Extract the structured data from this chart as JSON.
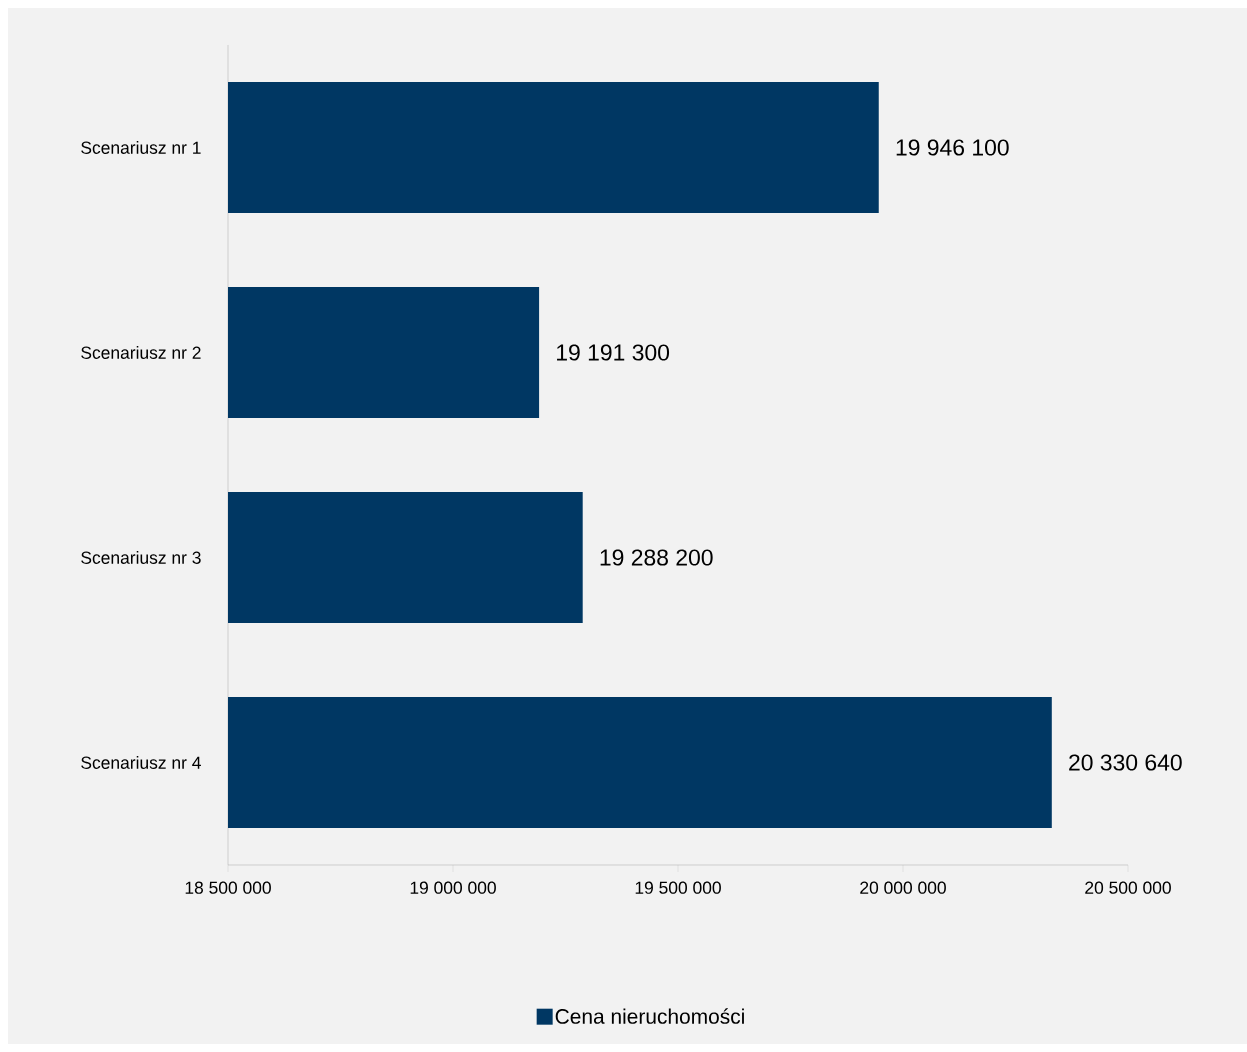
{
  "chart_data": {
    "type": "bar",
    "orientation": "horizontal",
    "categories": [
      "Scenariusz nr 1",
      "Scenariusz nr 2",
      "Scenariusz nr 3",
      "Scenariusz nr 4"
    ],
    "series": [
      {
        "name": "Cena nieruchomości",
        "color": "#003763",
        "values": [
          19946100,
          19191300,
          19288200,
          20330640
        ],
        "value_labels": [
          "19 946 100",
          "19 191 300",
          "19 288 200",
          "20 330 640"
        ]
      }
    ],
    "xlim": [
      18500000,
      20500000
    ],
    "xticks": [
      {
        "value": 18500000,
        "label": "18 500 000"
      },
      {
        "value": 19000000,
        "label": "19 000 000"
      },
      {
        "value": 19500000,
        "label": "19 500 000"
      },
      {
        "value": 20000000,
        "label": "20 000 000"
      },
      {
        "value": 20500000,
        "label": "20 500 000"
      }
    ],
    "grid": false,
    "legend": "bottom"
  }
}
